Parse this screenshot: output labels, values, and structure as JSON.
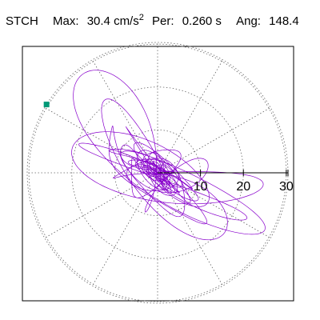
{
  "header": {
    "station": "STCH",
    "max_label": "Max:",
    "max_value": "30.4 cm/s",
    "max_exp": "2",
    "per_label": "Per:",
    "per_value": "0.260 s",
    "ang_label": "Ang:",
    "ang_value": "148.4"
  },
  "chart_data": {
    "type": "polar-particle-motion",
    "title": "STCH",
    "max_acceleration_cm_s2": 30.4,
    "period_s": 0.26,
    "angle_deg": 148.4,
    "radial_ticks": [
      10,
      20,
      30
    ],
    "tick_labels": [
      "10",
      "20",
      "30"
    ],
    "rmax": 30.4,
    "grid": "dotted polar grid, 30-degree spokes",
    "trace_color": "#8800cc",
    "marker_color": "#009977",
    "marker_angle_deg": 148.4,
    "marker_radius": 30.4
  }
}
